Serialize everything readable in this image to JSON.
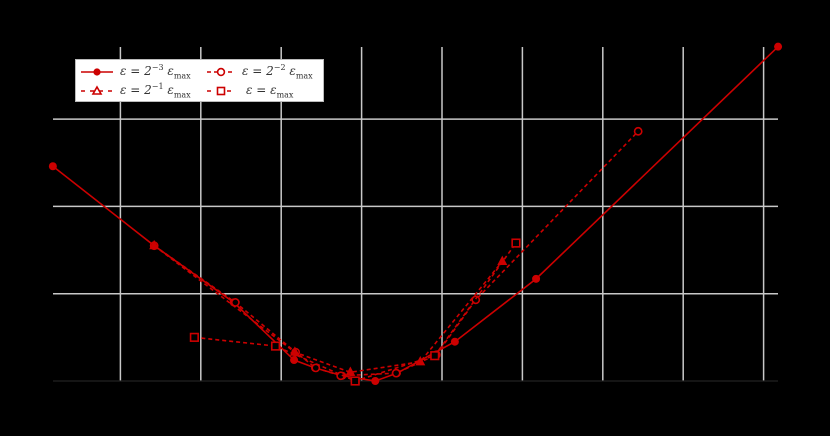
{
  "chart_data": {
    "type": "line",
    "title": "",
    "xlabel": "",
    "ylabel": "",
    "background": "#000000",
    "grid": true,
    "grid_color": "#c8c8c8",
    "xlim": [
      0.16,
      9.18
    ],
    "ylim": [
      0,
      3.8
    ],
    "x_gridlines": [
      1,
      2,
      3,
      4,
      5,
      6,
      7,
      8,
      9
    ],
    "y_gridlines": [
      0,
      1,
      2,
      3
    ],
    "legend_position": "upper left",
    "series_color": "#cc0000",
    "series": [
      {
        "name": "ε = 2^-3 ε_max",
        "label_parts": {
          "lhs": "ε = 2",
          "exp": "−3",
          "rhs": "ε",
          "sub": "max"
        },
        "line": "solid",
        "marker": "filled-circle",
        "x": [
          0.16,
          1.42,
          2.41,
          3.16,
          3.42,
          3.76,
          4.17,
          4.44,
          5.16,
          6.17,
          9.18
        ],
        "y": [
          2.46,
          1.55,
          0.9,
          0.24,
          0.15,
          0.06,
          0.0,
          0.09,
          0.45,
          1.17,
          3.83
        ]
      },
      {
        "name": "ε = 2^-2 ε_max",
        "label_parts": {
          "lhs": "ε = 2",
          "exp": "−2",
          "rhs": "ε",
          "sub": "max"
        },
        "line": "dashed",
        "marker": "open-circle",
        "x": [
          1.42,
          2.43,
          3.18,
          3.43,
          3.74,
          4.43,
          4.93,
          5.42,
          7.44
        ],
        "y": [
          1.55,
          0.9,
          0.33,
          0.15,
          0.06,
          0.09,
          0.3,
          0.93,
          2.86
        ]
      },
      {
        "name": "ε = 2^-1 ε_max",
        "label_parts": {
          "lhs": "ε = 2",
          "exp": "−1",
          "rhs": "ε",
          "sub": "max"
        },
        "line": "dashed",
        "marker": "triangle",
        "x": [
          1.42,
          3.17,
          3.86,
          4.73,
          5.75
        ],
        "y": [
          1.55,
          0.33,
          0.1,
          0.22,
          1.37
        ]
      },
      {
        "name": "ε = ε_max",
        "label_parts": {
          "lhs": "ε = ε",
          "exp": "",
          "rhs": "",
          "sub": "max"
        },
        "line": "dashed",
        "marker": "open-square",
        "x": [
          1.92,
          2.93,
          3.92,
          4.91,
          5.92
        ],
        "y": [
          0.5,
          0.4,
          0.0,
          0.29,
          1.58
        ]
      }
    ]
  },
  "legend": {
    "items": [
      {
        "lhs": "ε = 2",
        "exp": "−3",
        "eps": " ε",
        "sub": "max"
      },
      {
        "lhs": "ε = 2",
        "exp": "−2",
        "eps": " ε",
        "sub": "max"
      },
      {
        "lhs": "ε = 2",
        "exp": "−1",
        "eps": " ε",
        "sub": "max"
      },
      {
        "lhs": "ε = ε",
        "exp": "",
        "eps": "",
        "sub": "max"
      }
    ]
  }
}
